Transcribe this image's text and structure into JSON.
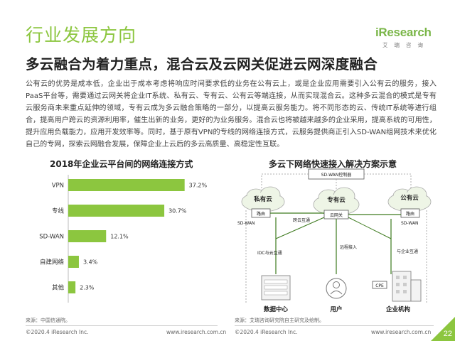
{
  "header": {
    "title": "行业发展方向",
    "subtitle": "多云融合为着力重点，混合云及云网关促进云网深度融合"
  },
  "logo": {
    "main": "iResearch",
    "sub": "艾瑞咨询"
  },
  "body_text": "公有云的优势是成本低，企业出于成本考虑将响应时间要求低的业务在公有云上，或是企业应用需要引入公有云的服务，接入PaaS平台等，需要通过云网关将企业IT系统、私有云、专有云、公有云等端连接，从而实现混合云。这种多云混合的模式是专有云服务商未来重点延伸的领域，专有云成为多云融合策略的一部分，以提高云服务能力。将不同形态的云、传统IT系统等进行组合，提高用户跨云的资源利用率，催生出新的业务，更好的为业务服务。混合云也将被越来越多的企业采用，提高系统的可用性，提升应用负载能力，应用开发效率等。同时，基于原有VPN的专线的网络连接方式，云服务提供商正引入SD-WAN组网技术来优化自己的专网，探索云网融合发展，保障企业上云后的多云高质量、高稳定性互联。",
  "left_panel": {
    "title": "2018年企业云平台间的网络连接方式",
    "source": "来源：中国信通院。"
  },
  "chart_data": {
    "type": "bar",
    "orientation": "horizontal",
    "title": "2018年企业云平台间的网络连接方式",
    "categories": [
      "VPN",
      "专线",
      "SD-WAN",
      "自建网络",
      "其他"
    ],
    "values": [
      37.2,
      30.7,
      12.1,
      3.4,
      2.3
    ],
    "value_labels": [
      "37.2%",
      "30.7%",
      "12.1%",
      "3.4%",
      "2.3%"
    ],
    "unit": "%",
    "xlim": [
      0,
      40
    ],
    "bar_color": "#8cc63f",
    "grid": false
  },
  "right_panel": {
    "title": "多云下网络快速接入解决方案示意",
    "source": "来源：艾瑞咨询研究院自主研究及绘制。",
    "labels": {
      "controller": "SD-WAN控制器",
      "private_cloud": "私有云",
      "dedicated_cloud": "专有云",
      "public_cloud": "公有云",
      "router_left": "路由",
      "router_right": "路由",
      "cloud_gateway": "云网关",
      "cross_cloud": "跨云互通",
      "sdwan_left": "SD-WAN",
      "sdwan_right": "SD-WAN",
      "idc_link": "IDC与云互通",
      "remote_access": "远程接入",
      "enterprise_link": "与企业互通",
      "cpe": "CPE",
      "datacenter": "数据中心",
      "user": "用户",
      "enterprise": "企业机构"
    }
  },
  "footer": {
    "left_copyright": "©2020.4 iResearch Inc.",
    "left_url": "www.iresearch.com.cn",
    "right_copyright": "©2020.4 iResearch Inc.",
    "right_url": "www.iresearch.com.cn",
    "page_number": "22"
  },
  "colors": {
    "accent": "#8cc63f",
    "dark_green": "#3d7a1e",
    "line_gray": "#999999"
  }
}
